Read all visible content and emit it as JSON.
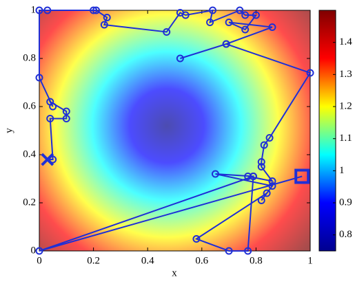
{
  "chart_data": {
    "type": "path",
    "x_label": "x",
    "y_label": "y",
    "xlim": [
      0,
      1
    ],
    "ylim": [
      0,
      1
    ],
    "xticks": [
      0,
      0.2,
      0.4,
      0.6,
      0.8,
      1
    ],
    "yticks": [
      0,
      0.2,
      0.4,
      0.6,
      0.8,
      1
    ],
    "colorbar_lim": [
      0.75,
      1.5
    ],
    "colorbar_ticks": [
      0.8,
      0.9,
      1,
      1.1,
      1.2,
      1.3,
      1.4
    ],
    "colormap": [
      "#00008f",
      "#0000ff",
      "#00ffff",
      "#ffff00",
      "#ff0000",
      "#800000"
    ],
    "x": [
      0.03,
      0.05,
      0.04,
      0.1,
      0.1,
      0.04,
      0.05,
      0.0,
      0.0,
      0.03,
      0.2,
      0.21,
      0.25,
      0.24,
      0.47,
      0.52,
      0.54,
      0.64,
      0.63,
      0.74,
      0.76,
      0.8,
      0.76,
      0.7,
      0.86,
      0.69,
      0.52,
      0.69,
      1.0,
      0.85,
      0.83,
      0.82,
      0.82,
      0.86,
      0.77,
      0.79,
      0.65,
      0.86,
      0.82,
      0.84,
      0.58,
      0.7,
      0.77,
      0.79,
      0.0,
      0.97
    ],
    "series": [
      {
        "color": "#1f2fd6",
        "values": [
          0.38,
          0.38,
          0.55,
          0.55,
          0.58,
          0.62,
          0.6,
          0.72,
          1.0,
          1.0,
          1.0,
          1.0,
          0.97,
          0.94,
          0.91,
          0.99,
          0.98,
          1.0,
          0.95,
          1.0,
          0.98,
          0.98,
          0.92,
          0.95,
          0.93,
          0.86,
          0.8,
          0.86,
          0.74,
          0.47,
          0.44,
          0.37,
          0.35,
          0.29,
          0.31,
          0.31,
          0.32,
          0.27,
          0.21,
          0.24,
          0.05,
          0.0,
          0.0,
          0.31,
          0.0,
          0.31
        ]
      }
    ]
  }
}
